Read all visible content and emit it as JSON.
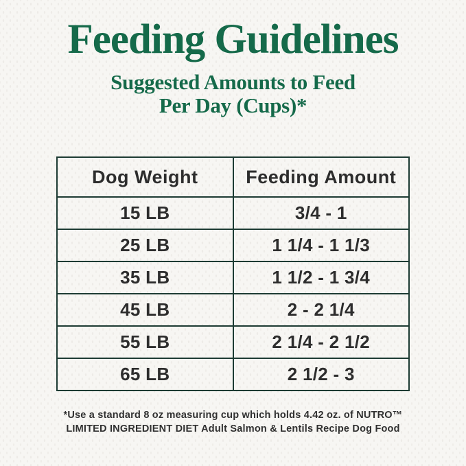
{
  "page": {
    "title": "Feeding Guidelines",
    "subtitle_line1": "Suggested Amounts to Feed",
    "subtitle_line2": "Per Day (Cups)*"
  },
  "table": {
    "headers": {
      "weight": "Dog Weight",
      "amount": "Feeding Amount"
    },
    "rows": [
      {
        "weight": "15 LB",
        "amount": "3/4 - 1"
      },
      {
        "weight": "25 LB",
        "amount": "1 1/4 - 1 1/3"
      },
      {
        "weight": "35 LB",
        "amount": "1 1/2 - 1 3/4"
      },
      {
        "weight": "45 LB",
        "amount": "2 - 2 1/4"
      },
      {
        "weight": "55 LB",
        "amount": "2 1/4 - 2 1/2"
      },
      {
        "weight": "65 LB",
        "amount": "2 1/2 - 3"
      }
    ]
  },
  "footnote": {
    "line1": "*Use a standard 8 oz measuring cup which holds 4.42 oz. of NUTRO™",
    "line2": "LIMITED INGREDIENT DIET Adult Salmon & Lentils Recipe Dog Food"
  },
  "colors": {
    "brand_green": "#156a4a",
    "table_border": "#1d3b33",
    "text_dark": "#2d2d2d",
    "background": "#f7f6f3"
  }
}
